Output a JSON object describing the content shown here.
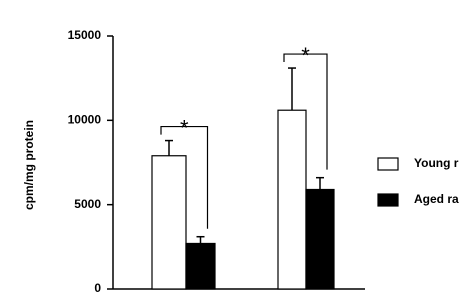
{
  "chart_data": {
    "type": "bar",
    "y_label": "cpm/mg protein",
    "categories": [
      null,
      null
    ],
    "series": [
      {
        "name": "Young r",
        "color": "#ffffff",
        "values": [
          7900,
          10600
        ],
        "errors": [
          900,
          2500
        ]
      },
      {
        "name": "Aged ra",
        "color": "#000000",
        "values": [
          2700,
          5900
        ],
        "errors": [
          400,
          700
        ]
      }
    ],
    "annotations": [
      "*",
      "*"
    ],
    "ylim": [
      0,
      15000
    ],
    "yticks": [
      0,
      5000,
      10000,
      15000
    ]
  }
}
